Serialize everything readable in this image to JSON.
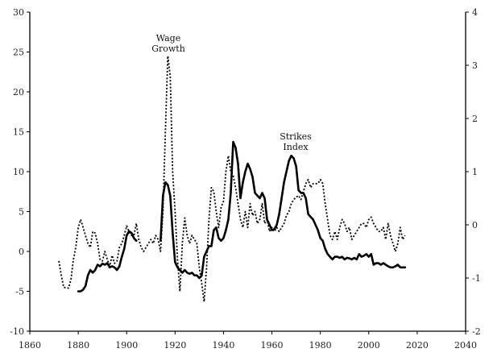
{
  "chart_data": {
    "type": "line",
    "x_axis": {
      "range": [
        1860,
        2040
      ],
      "ticks": [
        1860,
        1880,
        1900,
        1920,
        1940,
        1960,
        1980,
        2000,
        2020,
        2040
      ]
    },
    "y_left": {
      "range": [
        -10,
        30
      ],
      "ticks": [
        -10,
        -5,
        0,
        5,
        10,
        15,
        20,
        25,
        30
      ]
    },
    "y_right": {
      "range": [
        -2,
        4
      ],
      "ticks": [
        -2,
        -1,
        0,
        1,
        2,
        3,
        4
      ]
    },
    "grid": false,
    "annotations": [
      {
        "text_lines": [
          "Wage",
          "Growth"
        ],
        "series": "wage"
      },
      {
        "text_lines": [
          "Strikes",
          "Index"
        ],
        "series": "strikes"
      }
    ],
    "series": [
      {
        "id": "wage",
        "axis": "left",
        "style": "dotted",
        "points": [
          [
            1872,
            -1.2
          ],
          [
            1873,
            -3
          ],
          [
            1874,
            -4.5
          ],
          [
            1876,
            -4.6
          ],
          [
            1877,
            -3.5
          ],
          [
            1878,
            -1
          ],
          [
            1879,
            0.5
          ],
          [
            1880,
            3
          ],
          [
            1881,
            4
          ],
          [
            1882,
            3
          ],
          [
            1883,
            2
          ],
          [
            1884,
            1
          ],
          [
            1885,
            0.5
          ],
          [
            1886,
            2.5
          ],
          [
            1887,
            2.3
          ],
          [
            1888,
            1
          ],
          [
            1889,
            -1
          ],
          [
            1890,
            -1.2
          ],
          [
            1891,
            0
          ],
          [
            1892,
            -1
          ],
          [
            1893,
            -1.8
          ],
          [
            1894,
            -0.5
          ],
          [
            1895,
            -1.5
          ],
          [
            1896,
            -1.2
          ],
          [
            1897,
            0.5
          ],
          [
            1898,
            1
          ],
          [
            1899,
            2
          ],
          [
            1900,
            3.2
          ],
          [
            1901,
            2.5
          ],
          [
            1902,
            2
          ],
          [
            1903,
            2
          ],
          [
            1904,
            3.5
          ],
          [
            1905,
            1.5
          ],
          [
            1906,
            0.5
          ],
          [
            1907,
            0
          ],
          [
            1908,
            0.5
          ],
          [
            1909,
            1
          ],
          [
            1910,
            1.5
          ],
          [
            1911,
            1
          ],
          [
            1912,
            2
          ],
          [
            1913,
            1.5
          ],
          [
            1914,
            0
          ],
          [
            1915,
            5
          ],
          [
            1916,
            15
          ],
          [
            1917,
            24.5
          ],
          [
            1918,
            22
          ],
          [
            1919,
            10
          ],
          [
            1920,
            5
          ],
          [
            1921,
            -1
          ],
          [
            1922,
            -5
          ],
          [
            1923,
            1
          ],
          [
            1924,
            4.2
          ],
          [
            1925,
            2
          ],
          [
            1926,
            1
          ],
          [
            1927,
            2
          ],
          [
            1928,
            1.5
          ],
          [
            1929,
            1
          ],
          [
            1930,
            -2
          ],
          [
            1931,
            -4
          ],
          [
            1932,
            -6.3
          ],
          [
            1933,
            -2
          ],
          [
            1934,
            4
          ],
          [
            1935,
            8
          ],
          [
            1936,
            7.5
          ],
          [
            1937,
            5
          ],
          [
            1938,
            3
          ],
          [
            1939,
            5.5
          ],
          [
            1940,
            6.3
          ],
          [
            1941,
            10
          ],
          [
            1942,
            12
          ],
          [
            1943,
            10
          ],
          [
            1944,
            9.5
          ],
          [
            1945,
            8
          ],
          [
            1946,
            6
          ],
          [
            1947,
            4
          ],
          [
            1948,
            3
          ],
          [
            1949,
            5
          ],
          [
            1950,
            3
          ],
          [
            1951,
            6
          ],
          [
            1952,
            4.5
          ],
          [
            1953,
            5
          ],
          [
            1954,
            3.5
          ],
          [
            1955,
            4
          ],
          [
            1956,
            6
          ],
          [
            1957,
            3.5
          ],
          [
            1958,
            4
          ],
          [
            1959,
            2.5
          ],
          [
            1960,
            3
          ],
          [
            1961,
            2.5
          ],
          [
            1962,
            3
          ],
          [
            1963,
            2.5
          ],
          [
            1964,
            3
          ],
          [
            1965,
            3.5
          ],
          [
            1966,
            4.5
          ],
          [
            1967,
            5
          ],
          [
            1968,
            6
          ],
          [
            1969,
            6.5
          ],
          [
            1970,
            6.8
          ],
          [
            1971,
            7
          ],
          [
            1972,
            6.5
          ],
          [
            1973,
            7.5
          ],
          [
            1974,
            8.5
          ],
          [
            1975,
            9
          ],
          [
            1976,
            8
          ],
          [
            1977,
            8.5
          ],
          [
            1978,
            8.5
          ],
          [
            1979,
            8.5
          ],
          [
            1980,
            9
          ],
          [
            1981,
            8.5
          ],
          [
            1982,
            6
          ],
          [
            1983,
            4
          ],
          [
            1984,
            2
          ],
          [
            1985,
            1.5
          ],
          [
            1986,
            2.5
          ],
          [
            1987,
            1.5
          ],
          [
            1988,
            3
          ],
          [
            1989,
            4
          ],
          [
            1990,
            3.5
          ],
          [
            1991,
            2.5
          ],
          [
            1992,
            3
          ],
          [
            1993,
            1.5
          ],
          [
            1994,
            2
          ],
          [
            1995,
            2.5
          ],
          [
            1996,
            3
          ],
          [
            1997,
            3.5
          ],
          [
            1998,
            3.5
          ],
          [
            1999,
            3
          ],
          [
            2000,
            4
          ],
          [
            2001,
            4.3
          ],
          [
            2002,
            3.5
          ],
          [
            2003,
            3
          ],
          [
            2004,
            2.5
          ],
          [
            2005,
            2.5
          ],
          [
            2006,
            3
          ],
          [
            2007,
            1.5
          ],
          [
            2008,
            3.5
          ],
          [
            2009,
            2
          ],
          [
            2010,
            1
          ],
          [
            2011,
            0
          ],
          [
            2012,
            1
          ],
          [
            2013,
            3
          ],
          [
            2014,
            1.5
          ],
          [
            2015,
            2
          ]
        ]
      },
      {
        "id": "strikes",
        "axis": "right",
        "style": "solid",
        "segments": [
          [
            [
              1880,
              -1.25
            ],
            [
              1881,
              -1.25
            ],
            [
              1882,
              -1.22
            ],
            [
              1883,
              -1.15
            ],
            [
              1884,
              -0.95
            ],
            [
              1885,
              -0.85
            ],
            [
              1886,
              -0.9
            ],
            [
              1887,
              -0.85
            ],
            [
              1888,
              -0.75
            ],
            [
              1889,
              -0.78
            ],
            [
              1890,
              -0.73
            ],
            [
              1891,
              -0.75
            ],
            [
              1892,
              -0.72
            ],
            [
              1893,
              -0.8
            ],
            [
              1894,
              -0.78
            ],
            [
              1895,
              -0.8
            ],
            [
              1896,
              -0.85
            ],
            [
              1897,
              -0.78
            ],
            [
              1898,
              -0.6
            ],
            [
              1899,
              -0.45
            ],
            [
              1900,
              -0.2
            ],
            [
              1901,
              -0.12
            ],
            [
              1902,
              -0.15
            ],
            [
              1903,
              -0.25
            ],
            [
              1904,
              -0.3
            ]
          ],
          [
            [
              1914,
              -0.3
            ],
            [
              1915,
              0.55
            ],
            [
              1916,
              0.8
            ],
            [
              1917,
              0.75
            ],
            [
              1918,
              0.55
            ],
            [
              1919,
              -0.15
            ],
            [
              1920,
              -0.7
            ],
            [
              1921,
              -0.8
            ],
            [
              1922,
              -0.85
            ],
            [
              1923,
              -0.9
            ],
            [
              1924,
              -0.85
            ],
            [
              1925,
              -0.9
            ],
            [
              1926,
              -0.92
            ],
            [
              1927,
              -0.9
            ],
            [
              1928,
              -0.95
            ],
            [
              1929,
              -0.95
            ],
            [
              1930,
              -1.0
            ],
            [
              1931,
              -0.95
            ],
            [
              1932,
              -0.6
            ],
            [
              1933,
              -0.5
            ],
            [
              1934,
              -0.4
            ],
            [
              1935,
              -0.4
            ],
            [
              1936,
              -0.1
            ],
            [
              1937,
              -0.05
            ],
            [
              1938,
              -0.25
            ],
            [
              1939,
              -0.3
            ],
            [
              1940,
              -0.25
            ],
            [
              1941,
              -0.1
            ],
            [
              1942,
              0.1
            ],
            [
              1943,
              0.6
            ],
            [
              1944,
              1.56
            ],
            [
              1945,
              1.45
            ],
            [
              1946,
              1.15
            ],
            [
              1947,
              0.5
            ],
            [
              1948,
              0.8
            ],
            [
              1949,
              1.0
            ],
            [
              1950,
              1.15
            ],
            [
              1951,
              1.05
            ],
            [
              1952,
              0.9
            ],
            [
              1953,
              0.6
            ],
            [
              1954,
              0.55
            ],
            [
              1955,
              0.5
            ],
            [
              1956,
              0.6
            ],
            [
              1957,
              0.5
            ],
            [
              1958,
              0.1
            ],
            [
              1959,
              0.0
            ],
            [
              1960,
              -0.1
            ],
            [
              1961,
              -0.08
            ],
            [
              1962,
              0.0
            ],
            [
              1963,
              0.2
            ],
            [
              1964,
              0.5
            ],
            [
              1965,
              0.8
            ],
            [
              1966,
              1.0
            ],
            [
              1967,
              1.2
            ],
            [
              1968,
              1.3
            ],
            [
              1969,
              1.25
            ],
            [
              1970,
              1.1
            ],
            [
              1971,
              0.65
            ],
            [
              1972,
              0.6
            ],
            [
              1973,
              0.6
            ],
            [
              1974,
              0.5
            ],
            [
              1975,
              0.2
            ],
            [
              1976,
              0.15
            ],
            [
              1977,
              0.1
            ],
            [
              1978,
              0.0
            ],
            [
              1979,
              -0.1
            ],
            [
              1980,
              -0.25
            ],
            [
              1981,
              -0.3
            ],
            [
              1982,
              -0.45
            ],
            [
              1983,
              -0.55
            ],
            [
              1984,
              -0.6
            ],
            [
              1985,
              -0.65
            ],
            [
              1986,
              -0.6
            ],
            [
              1987,
              -0.6
            ],
            [
              1988,
              -0.62
            ],
            [
              1989,
              -0.6
            ],
            [
              1990,
              -0.65
            ],
            [
              1991,
              -0.62
            ],
            [
              1992,
              -0.63
            ],
            [
              1993,
              -0.65
            ],
            [
              1994,
              -0.62
            ],
            [
              1995,
              -0.65
            ],
            [
              1996,
              -0.55
            ],
            [
              1997,
              -0.6
            ],
            [
              1998,
              -0.58
            ],
            [
              1999,
              -0.55
            ],
            [
              2000,
              -0.6
            ],
            [
              2001,
              -0.55
            ],
            [
              2002,
              -0.75
            ],
            [
              2003,
              -0.72
            ],
            [
              2004,
              -0.72
            ],
            [
              2005,
              -0.75
            ],
            [
              2006,
              -0.72
            ],
            [
              2007,
              -0.75
            ],
            [
              2008,
              -0.78
            ],
            [
              2009,
              -0.8
            ],
            [
              2010,
              -0.8
            ],
            [
              2011,
              -0.78
            ],
            [
              2012,
              -0.75
            ],
            [
              2013,
              -0.8
            ],
            [
              2014,
              -0.8
            ],
            [
              2015,
              -0.8
            ]
          ]
        ]
      }
    ]
  }
}
